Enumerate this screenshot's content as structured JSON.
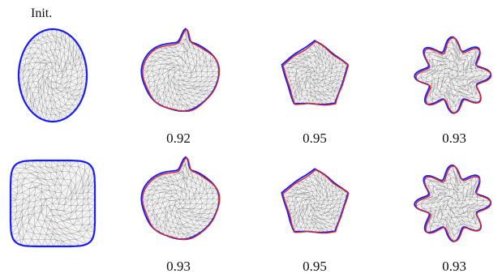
{
  "init_label": "Init.",
  "colors": {
    "initial": "#1a1aff",
    "target": "#1a1aff",
    "result": "#d42a2a",
    "mesh": "#7a7a7a"
  },
  "rows": [
    {
      "init_shape": "ellipse",
      "results": [
        {
          "shape": "blob",
          "score": "0.92"
        },
        {
          "shape": "pentagon",
          "score": "0.95"
        },
        {
          "shape": "star",
          "score": "0.93"
        }
      ]
    },
    {
      "init_shape": "rounded-square",
      "results": [
        {
          "shape": "blob",
          "score": "0.93"
        },
        {
          "shape": "pentagon",
          "score": "0.95"
        },
        {
          "shape": "star",
          "score": "0.93"
        }
      ]
    }
  ]
}
